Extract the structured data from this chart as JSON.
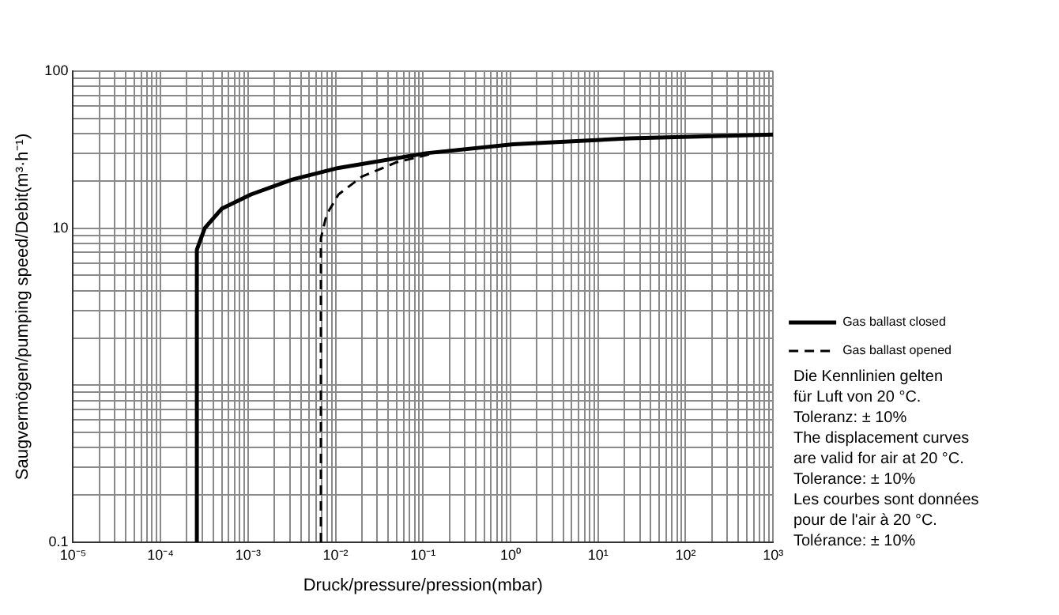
{
  "chart_data": {
    "type": "line",
    "xlabel": "Druck/pressure/pression(mbar)",
    "ylabel": "Saugvermögen/pumping speed/Debit(m³·h⁻¹)",
    "log": "xy",
    "grid": true,
    "legend": "right",
    "marker": "none",
    "xlim": [
      1e-05,
      1000
    ],
    "ylim": [
      0.1,
      100
    ],
    "xticks": [
      {
        "value": 1e-05,
        "label": "10⁻⁵"
      },
      {
        "value": 2e-05,
        "label": null
      },
      {
        "value": 3e-05,
        "label": null
      },
      {
        "value": 4e-05,
        "label": null
      },
      {
        "value": 5e-05,
        "label": null
      },
      {
        "value": 6e-05,
        "label": null
      },
      {
        "value": 7e-05,
        "label": null
      },
      {
        "value": 8e-05,
        "label": null
      },
      {
        "value": 9e-05,
        "label": null
      },
      {
        "value": 0.0001,
        "label": "10⁻⁴"
      },
      {
        "value": 0.0002,
        "label": null
      },
      {
        "value": 0.0003,
        "label": null
      },
      {
        "value": 0.0004,
        "label": null
      },
      {
        "value": 0.0005,
        "label": null
      },
      {
        "value": 0.0006,
        "label": null
      },
      {
        "value": 0.0007,
        "label": null
      },
      {
        "value": 0.0008,
        "label": null
      },
      {
        "value": 0.0009,
        "label": null
      },
      {
        "value": 0.001,
        "label": "10⁻³"
      },
      {
        "value": 0.002,
        "label": null
      },
      {
        "value": 0.003,
        "label": null
      },
      {
        "value": 0.004,
        "label": null
      },
      {
        "value": 0.005,
        "label": null
      },
      {
        "value": 0.006,
        "label": null
      },
      {
        "value": 0.007,
        "label": null
      },
      {
        "value": 0.008,
        "label": null
      },
      {
        "value": 0.009,
        "label": null
      },
      {
        "value": 0.01,
        "label": "10⁻²"
      },
      {
        "value": 0.02,
        "label": null
      },
      {
        "value": 0.03,
        "label": null
      },
      {
        "value": 0.04,
        "label": null
      },
      {
        "value": 0.05,
        "label": null
      },
      {
        "value": 0.06,
        "label": null
      },
      {
        "value": 0.07,
        "label": null
      },
      {
        "value": 0.08,
        "label": null
      },
      {
        "value": 0.09,
        "label": null
      },
      {
        "value": 0.1,
        "label": "10⁻¹"
      },
      {
        "value": 0.2,
        "label": null
      },
      {
        "value": 0.3,
        "label": null
      },
      {
        "value": 0.4,
        "label": null
      },
      {
        "value": 0.5,
        "label": null
      },
      {
        "value": 0.6,
        "label": null
      },
      {
        "value": 0.7,
        "label": null
      },
      {
        "value": 0.8,
        "label": null
      },
      {
        "value": 0.9,
        "label": null
      },
      {
        "value": 1,
        "label": "10⁰"
      },
      {
        "value": 2,
        "label": null
      },
      {
        "value": 3,
        "label": null
      },
      {
        "value": 4,
        "label": null
      },
      {
        "value": 5,
        "label": null
      },
      {
        "value": 6,
        "label": null
      },
      {
        "value": 7,
        "label": null
      },
      {
        "value": 8,
        "label": null
      },
      {
        "value": 9,
        "label": null
      },
      {
        "value": 10,
        "label": "10¹"
      },
      {
        "value": 20,
        "label": null
      },
      {
        "value": 30,
        "label": null
      },
      {
        "value": 40,
        "label": null
      },
      {
        "value": 50,
        "label": null
      },
      {
        "value": 60,
        "label": null
      },
      {
        "value": 70,
        "label": null
      },
      {
        "value": 80,
        "label": null
      },
      {
        "value": 90,
        "label": null
      },
      {
        "value": 100,
        "label": "10²"
      },
      {
        "value": 200,
        "label": null
      },
      {
        "value": 300,
        "label": null
      },
      {
        "value": 400,
        "label": null
      },
      {
        "value": 500,
        "label": null
      },
      {
        "value": 600,
        "label": null
      },
      {
        "value": 700,
        "label": null
      },
      {
        "value": 800,
        "label": null
      },
      {
        "value": 900,
        "label": null
      },
      {
        "value": 1000,
        "label": "10³"
      }
    ],
    "yticks": [
      0.1,
      {
        "value": 0.2,
        "label": null
      },
      {
        "value": 0.3,
        "label": null
      },
      {
        "value": 0.4,
        "label": null
      },
      {
        "value": 0.5,
        "label": null
      },
      {
        "value": 0.6,
        "label": null
      },
      {
        "value": 0.7,
        "label": null
      },
      {
        "value": 0.8,
        "label": null
      },
      {
        "value": 0.9,
        "label": null
      },
      {
        "value": 1,
        "label": null
      },
      {
        "value": 2,
        "label": null
      },
      {
        "value": 3,
        "label": null
      },
      {
        "value": 4,
        "label": null
      },
      {
        "value": 5,
        "label": null
      },
      {
        "value": 6,
        "label": null
      },
      {
        "value": 7,
        "label": null
      },
      {
        "value": 8,
        "label": null
      },
      {
        "value": 9,
        "label": null
      },
      10,
      {
        "value": 20,
        "label": null
      },
      {
        "value": 30,
        "label": null
      },
      {
        "value": 40,
        "label": null
      },
      {
        "value": 50,
        "label": null
      },
      {
        "value": 60,
        "label": null
      },
      {
        "value": 70,
        "label": null
      },
      {
        "value": 80,
        "label": null
      },
      {
        "value": 90,
        "label": null
      },
      100
    ],
    "series": [
      {
        "name": "Gas ballast closed",
        "color": "#000000",
        "line_style": "solid",
        "x": [
          0.00026,
          0.00026,
          0.00032,
          0.0005,
          0.00108,
          0.0032,
          0.0108,
          0.108,
          1.08,
          23,
          1000
        ],
        "values": [
          0.1,
          7.3,
          10,
          13.3,
          16.4,
          20.4,
          24.2,
          30,
          34.2,
          37.3,
          39.5
        ]
      },
      {
        "name": "Gas ballast opened",
        "color": "#000000",
        "line_style": "dashed",
        "x": [
          0.0068,
          0.0068,
          0.0079,
          0.0108,
          0.02,
          0.05,
          0.17
        ],
        "values": [
          0.1,
          8.6,
          12.2,
          16.4,
          21.3,
          26.3,
          31
        ]
      }
    ],
    "annotations": [
      "Die Kennlinien gelten",
      "für Luft von 20 °C.",
      "Toleranz: ± 10%",
      "The displacement curves",
      "are valid for air at 20 °C.",
      "Tolerance: ± 10%",
      "Les courbes sont données",
      "pour de l'air à 20 °C.",
      "Tolérance: ± 10%"
    ]
  }
}
